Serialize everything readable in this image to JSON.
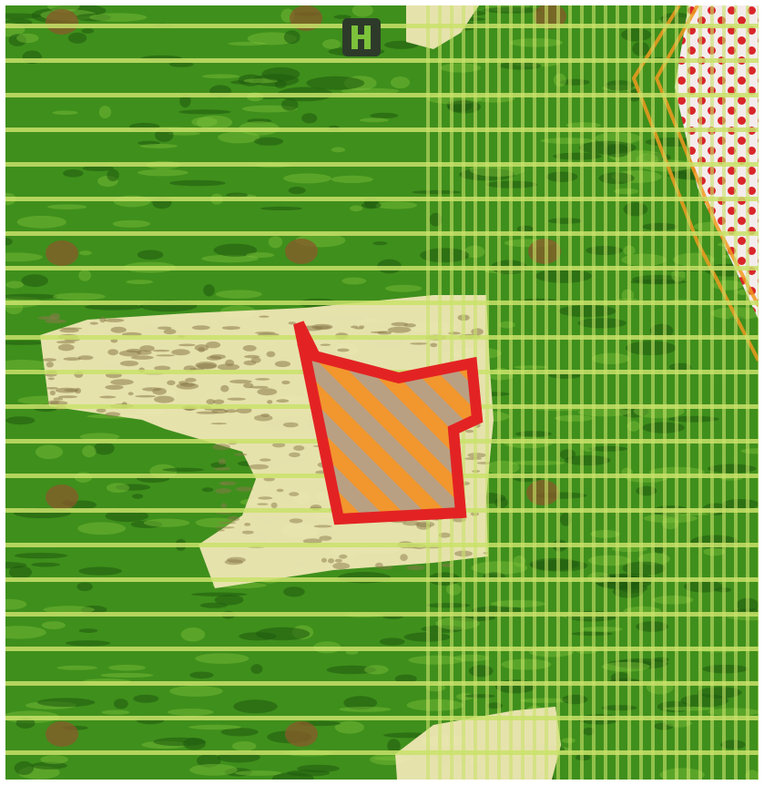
{
  "map": {
    "colors": {
      "terrain_base": "#3f8f1c",
      "terrain_dark": "#1f5a0e",
      "terrain_light": "#7cc23a",
      "grid_line": "#c9e26a",
      "clearing": "#efe7b4",
      "clearing_mark": "#8a7a4a",
      "settlement_red": "#d8262a",
      "settlement_white": "#f4ecec",
      "road_orange": "#f09a1e",
      "parcel_outline": "#e32323",
      "parcel_stripe_a": "#f2962e",
      "parcel_stripe_b": "#b9a083",
      "marker_dark": "#2d3a2a",
      "tree_spot": "#8a5a2a"
    },
    "icons": {
      "marker": "map-marker-icon"
    },
    "layers": {
      "horizontal_grid": true,
      "vertical_grid_right_half": true,
      "highlighted_parcel": true
    }
  }
}
